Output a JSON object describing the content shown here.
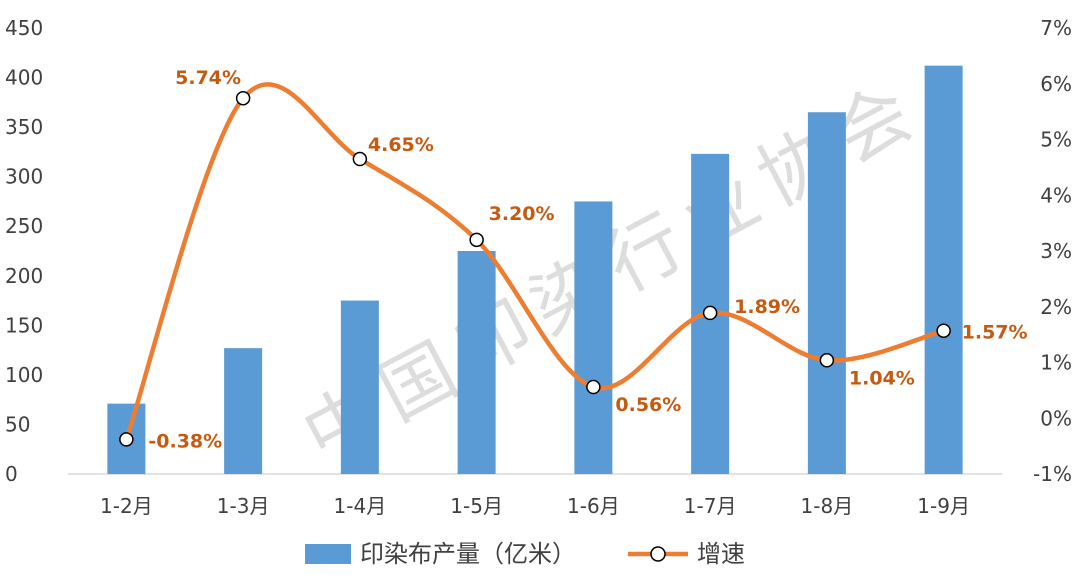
{
  "chart_data": {
    "type": "bar",
    "categories": [
      "1-2月",
      "1-3月",
      "1-4月",
      "1-5月",
      "1-6月",
      "1-7月",
      "1-8月",
      "1-9月"
    ],
    "series": [
      {
        "name": "印染布产量（亿米）",
        "type": "bar",
        "axis": "left",
        "values": [
          71,
          127,
          175,
          225,
          275,
          323,
          365,
          412
        ],
        "color": "#5b9bd5"
      },
      {
        "name": "增速",
        "type": "line",
        "axis": "right",
        "values": [
          -0.38,
          5.74,
          4.65,
          3.2,
          0.56,
          1.89,
          1.04,
          1.57
        ],
        "labels": [
          "-0.38%",
          "5.74%",
          "4.65%",
          "3.20%",
          "0.56%",
          "1.89%",
          "1.04%",
          "1.57%"
        ],
        "color": "#ed7d31",
        "label_color": "#c55a11",
        "smooth": true,
        "marker": "circle-white"
      }
    ],
    "y_left": {
      "min": 0,
      "max": 450,
      "step": 50,
      "tick_labels": [
        "0",
        "50",
        "100",
        "150",
        "200",
        "250",
        "300",
        "350",
        "400",
        "450"
      ]
    },
    "y_right": {
      "min": -1,
      "max": 7,
      "step": 1,
      "tick_labels": [
        "-1%",
        "0%",
        "1%",
        "2%",
        "3%",
        "4%",
        "5%",
        "6%",
        "7%"
      ]
    },
    "title": "",
    "grid": false,
    "legend_position": "bottom",
    "watermark": "中国印染行业协会"
  }
}
